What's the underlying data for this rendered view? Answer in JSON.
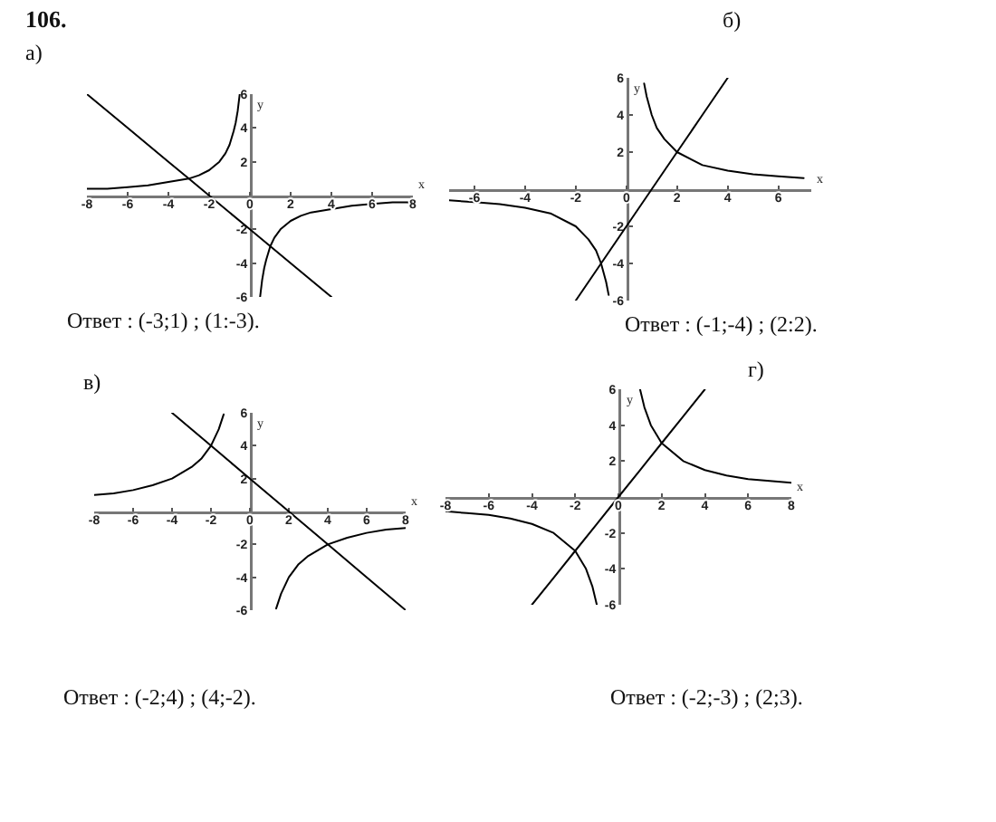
{
  "chart_data": [
    {
      "type": "line",
      "title": "106.",
      "subtitle": "а)",
      "xlabel": "x",
      "ylabel": "y",
      "xlim": [
        -8,
        8
      ],
      "ylim": [
        -6,
        6
      ],
      "xticks": [
        -8,
        -6,
        -4,
        -2,
        0,
        2,
        4,
        6,
        8
      ],
      "yticks": [
        -6,
        -4,
        -2,
        2,
        4,
        6
      ],
      "line_style": "solid",
      "annotations": [
        "Ответ : (-3;1) ; (1:-3)."
      ],
      "series": [
        {
          "color": "#000000",
          "x": [
            -8,
            -7,
            -6,
            -5,
            -4,
            -3,
            -2.5,
            -2,
            -1.5,
            -1.2,
            -1,
            -0.8,
            -0.7,
            -0.6,
            -0.5,
            0,
            0.5,
            0.6,
            0.7,
            0.8,
            1,
            1.2,
            1.5,
            2,
            2.5,
            3,
            4,
            5,
            6,
            7,
            8
          ],
          "values": [
            0.4,
            0.4,
            0.5,
            0.6,
            0.8,
            1,
            1.2,
            1.5,
            2,
            2.5,
            3,
            3.8,
            4.3,
            5,
            6,
            null,
            -6,
            -5,
            -4.3,
            -3.8,
            -3,
            -2.5,
            -2,
            -1.5,
            -1.2,
            -1,
            -0.8,
            -0.6,
            -0.5,
            -0.4,
            -0.4
          ]
        },
        {
          "color": "#000000",
          "x": [
            -8,
            -6,
            -4,
            -3,
            -2,
            0,
            1,
            2,
            4
          ],
          "values": [
            6,
            4,
            2,
            1,
            0,
            -2,
            -3,
            -4,
            -6
          ]
        }
      ]
    },
    {
      "type": "line",
      "title": "б)",
      "xlabel": "x",
      "ylabel": "y",
      "xlim": [
        -7,
        7.3
      ],
      "ylim": [
        -6,
        6
      ],
      "xticks": [
        -6,
        -4,
        -2,
        0,
        2,
        4,
        6
      ],
      "yticks": [
        -6,
        -4,
        -2,
        2,
        4,
        6
      ],
      "line_style": "solid",
      "annotations": [
        "Ответ : (-1;-4) ; (2:2)."
      ],
      "series": [
        {
          "color": "#000000",
          "x": [
            -7,
            -6,
            -5,
            -4,
            -3,
            -2,
            -1.5,
            -1.2,
            -1,
            -0.8,
            -0.7,
            0,
            0.7,
            0.8,
            1,
            1.2,
            1.5,
            2,
            3,
            4,
            5,
            6,
            7
          ],
          "values": [
            -0.6,
            -0.7,
            -0.8,
            -1,
            -1.3,
            -2,
            -2.7,
            -3.3,
            -4,
            -5,
            -5.7,
            null,
            5.7,
            5,
            4,
            3.3,
            2.7,
            2,
            1.3,
            1,
            0.8,
            0.7,
            0.6
          ]
        },
        {
          "color": "#000000",
          "x": [
            -2,
            -1,
            0,
            1,
            2,
            3,
            4
          ],
          "values": [
            -6,
            -4,
            -2,
            0,
            2,
            4,
            6
          ]
        }
      ]
    },
    {
      "type": "line",
      "title": "в)",
      "xlabel": "x",
      "ylabel": "y",
      "xlim": [
        -8,
        8
      ],
      "ylim": [
        -6,
        6
      ],
      "xticks": [
        -8,
        -6,
        -4,
        -2,
        0,
        2,
        4,
        6,
        8
      ],
      "yticks": [
        -6,
        -4,
        -2,
        2,
        4,
        6
      ],
      "line_style": "solid",
      "annotations": [
        "Ответ : (-2;4) ; (4;-2)."
      ],
      "series": [
        {
          "color": "#000000",
          "x": [
            -8,
            -7,
            -6,
            -5,
            -4,
            -3,
            -2.5,
            -2,
            -1.6,
            -1.35,
            0,
            1.35,
            1.6,
            2,
            2.5,
            3,
            4,
            5,
            6,
            7,
            8
          ],
          "values": [
            1,
            1.1,
            1.3,
            1.6,
            2,
            2.7,
            3.2,
            4,
            5,
            5.9,
            null,
            -5.9,
            -5,
            -4,
            -3.2,
            -2.7,
            -2,
            -1.6,
            -1.3,
            -1.1,
            -1
          ]
        },
        {
          "color": "#000000",
          "x": [
            -4,
            -2,
            0,
            2,
            4,
            6,
            8
          ],
          "values": [
            6,
            4,
            2,
            0,
            -2,
            -4,
            -6
          ]
        }
      ]
    },
    {
      "type": "line",
      "title": "г)",
      "xlabel": "x",
      "ylabel": "y",
      "xlim": [
        -8,
        8
      ],
      "ylim": [
        -6,
        6
      ],
      "xticks": [
        -8,
        -6,
        -4,
        -2,
        0,
        2,
        4,
        6,
        8
      ],
      "yticks": [
        -6,
        -4,
        -2,
        2,
        4,
        6
      ],
      "line_style": "solid",
      "annotations": [
        "Ответ : (-2;-3) ; (2;3)."
      ],
      "series": [
        {
          "color": "#000000",
          "x": [
            -8,
            -7,
            -6,
            -5,
            -4,
            -3,
            -2,
            -1.5,
            -1.2,
            -1,
            0,
            1,
            1.2,
            1.5,
            2,
            3,
            4,
            5,
            6,
            7,
            8
          ],
          "values": [
            -0.8,
            -0.9,
            -1,
            -1.2,
            -1.5,
            -2,
            -3,
            -4,
            -5,
            -6,
            null,
            6,
            5,
            4,
            3,
            2,
            1.5,
            1.2,
            1,
            0.9,
            0.8
          ]
        },
        {
          "color": "#000000",
          "x": [
            -4,
            -3,
            -2,
            -1,
            0,
            1,
            2,
            3,
            4
          ],
          "values": [
            -6,
            -4.5,
            -3,
            -1.5,
            0,
            1.5,
            3,
            4.5,
            6
          ]
        }
      ]
    }
  ]
}
